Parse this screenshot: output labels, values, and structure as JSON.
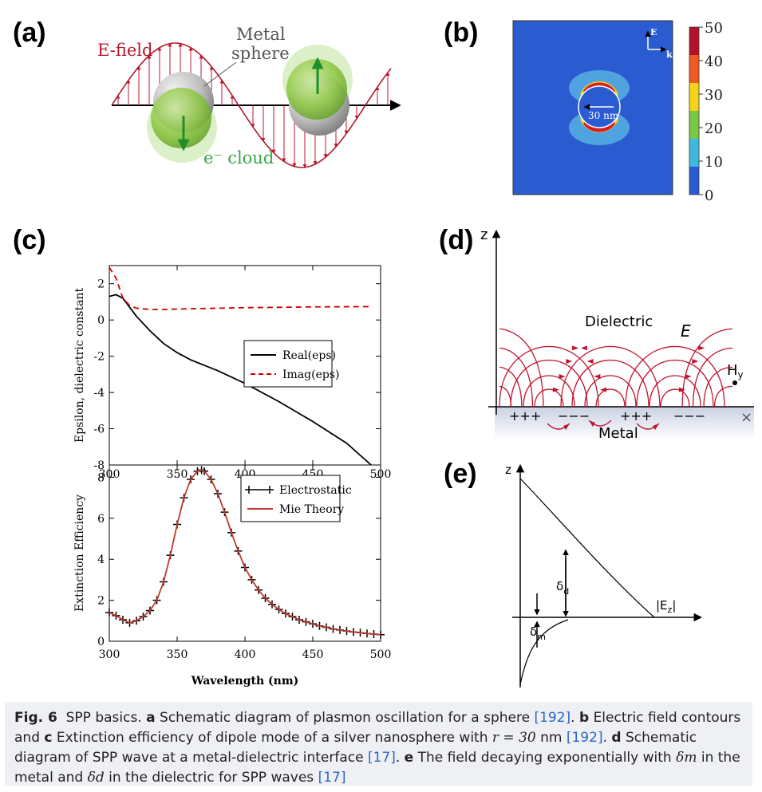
{
  "panels": {
    "a": {
      "letter": "(a)",
      "efield_label": "E-field",
      "metal_label_line1": "Metal",
      "metal_label_line2": "sphere",
      "ecloud_label": "e⁻ cloud"
    },
    "b": {
      "letter": "(b)",
      "scalebar_label": "30 nm",
      "axis_e_label": "E",
      "axis_k_label": "k",
      "colorbar_ticks": [
        "50",
        "40",
        "30",
        "20",
        "10",
        "0"
      ]
    },
    "c": {
      "letter": "(c)"
    },
    "d": {
      "letter": "(d)",
      "z_label": "z",
      "x_label": "×",
      "dielectric_label": "Dielectric",
      "e_label": "E",
      "hy_label": "Hy",
      "metal_label": "Metal",
      "plus1": "+++",
      "minus1": "−−−",
      "plus2": "+++",
      "minus2": "−−−"
    },
    "e": {
      "letter": "(e)",
      "z_label": "z",
      "delta_d": "δd",
      "delta_m": "δm",
      "ez_label": "|Ez|"
    }
  },
  "chart_data": [
    {
      "type": "line",
      "ylabel": "Epsilon, dielectric constant",
      "xlim": [
        300,
        500
      ],
      "ylim": [
        -8,
        3
      ],
      "xticks": [
        "300",
        "350",
        "400",
        "450",
        "500"
      ],
      "yticks": [
        "2",
        "0",
        "-2",
        "-4",
        "-6",
        "-8"
      ],
      "x": [
        300,
        305,
        310,
        315,
        320,
        330,
        340,
        350,
        360,
        380,
        400,
        425,
        450,
        475,
        493
      ],
      "series": [
        {
          "name": "Real(eps)",
          "color": "#000000",
          "dash": "solid",
          "values": [
            1.3,
            1.4,
            1.2,
            0.7,
            0.2,
            -0.6,
            -1.3,
            -1.8,
            -2.2,
            -2.8,
            -3.5,
            -4.5,
            -5.6,
            -6.8,
            -8.0
          ]
        },
        {
          "name": "Imag(eps)",
          "color": "#cc0000",
          "dash": "dashed",
          "values": [
            2.9,
            2.3,
            1.2,
            0.8,
            0.65,
            0.58,
            0.58,
            0.6,
            0.62,
            0.65,
            0.68,
            0.7,
            0.72,
            0.73,
            0.74
          ]
        }
      ],
      "legend_position": "center-right"
    },
    {
      "type": "line",
      "xlabel": "Wavelength (nm)",
      "ylabel": "Extinction Efficiency",
      "xlim": [
        300,
        500
      ],
      "ylim": [
        0,
        8.6
      ],
      "xticks": [
        "300",
        "350",
        "400",
        "450",
        "500"
      ],
      "yticks": [
        "0",
        "2",
        "4",
        "6",
        "8"
      ],
      "x": [
        300,
        305,
        310,
        315,
        320,
        325,
        330,
        335,
        340,
        345,
        350,
        355,
        360,
        365,
        368,
        370,
        375,
        380,
        385,
        390,
        395,
        400,
        405,
        410,
        415,
        420,
        425,
        430,
        435,
        440,
        445,
        450,
        455,
        460,
        465,
        470,
        475,
        480,
        485,
        490,
        495,
        500
      ],
      "series": [
        {
          "name": "Electrostatic",
          "color": "#000000",
          "marker": "+",
          "values": [
            1.4,
            1.25,
            1.05,
            0.9,
            1.0,
            1.2,
            1.5,
            2.0,
            2.9,
            4.2,
            5.7,
            7.0,
            7.9,
            8.3,
            8.35,
            8.3,
            7.9,
            7.2,
            6.3,
            5.3,
            4.4,
            3.6,
            3.0,
            2.5,
            2.1,
            1.8,
            1.55,
            1.35,
            1.2,
            1.05,
            0.95,
            0.85,
            0.75,
            0.68,
            0.6,
            0.55,
            0.5,
            0.45,
            0.42,
            0.38,
            0.35,
            0.32
          ]
        },
        {
          "name": "Mie Theory",
          "color": "#c0392b",
          "marker": "line",
          "values": [
            1.4,
            1.25,
            1.05,
            0.9,
            1.0,
            1.2,
            1.5,
            2.0,
            2.9,
            4.2,
            5.7,
            7.0,
            7.9,
            8.3,
            8.35,
            8.3,
            7.9,
            7.2,
            6.3,
            5.3,
            4.4,
            3.6,
            3.0,
            2.5,
            2.1,
            1.8,
            1.55,
            1.35,
            1.2,
            1.05,
            0.95,
            0.85,
            0.75,
            0.68,
            0.6,
            0.55,
            0.5,
            0.45,
            0.42,
            0.38,
            0.35,
            0.32
          ]
        }
      ],
      "legend_position": "top-right"
    }
  ],
  "caption": {
    "fig_label": "Fig. 6",
    "title": "SPP basics.",
    "a_label": "a",
    "a_text": "Schematic diagram of plasmon oscillation for a sphere",
    "ref192": "[192]",
    "b_label": "b",
    "b_text": "Electric field contours and",
    "c_label": "c",
    "c_text_pre": "Extinction efficiency of dipole mode of a silver nanosphere with",
    "c_math": "r = 30",
    "c_text_post": "nm",
    "d_label": "d",
    "d_text": "Schematic diagram of SPP wave at a metal-dielectric interface",
    "ref17": "[17]",
    "e_label": "e",
    "e_text_pre": "The field decaying exponentially with",
    "delta_m": "δm",
    "e_text_mid": "in the metal and",
    "delta_d": "δd",
    "e_text_post": "in the dielectric for SPP waves"
  }
}
